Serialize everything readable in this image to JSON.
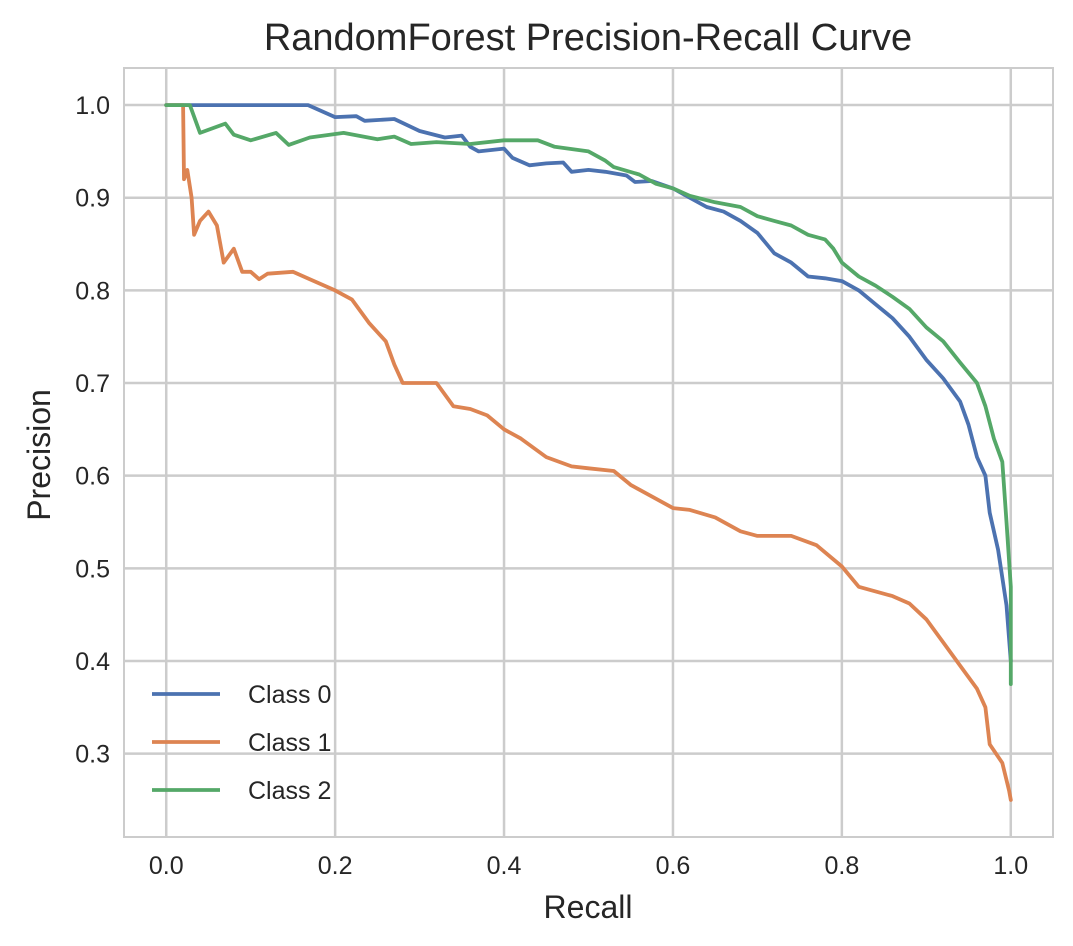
{
  "chart_data": {
    "type": "line",
    "title": "RandomForest Precision-Recall Curve",
    "xlabel": "Recall",
    "ylabel": "Precision",
    "xlim": [
      -0.05,
      1.05
    ],
    "ylim": [
      0.21,
      1.04
    ],
    "xticks": [
      "0.0",
      "0.2",
      "0.4",
      "0.6",
      "0.8",
      "1.0"
    ],
    "yticks": [
      "0.3",
      "0.4",
      "0.5",
      "0.6",
      "0.7",
      "0.8",
      "0.9",
      "1.0"
    ],
    "grid": true,
    "legend_position": "lower-left",
    "series": [
      {
        "name": "Class 0",
        "color": "#4c72b0",
        "points": [
          [
            0.0,
            1.0
          ],
          [
            0.05,
            1.0
          ],
          [
            0.1,
            1.0
          ],
          [
            0.168,
            1.0
          ],
          [
            0.2,
            0.987
          ],
          [
            0.225,
            0.988
          ],
          [
            0.235,
            0.983
          ],
          [
            0.27,
            0.985
          ],
          [
            0.3,
            0.972
          ],
          [
            0.33,
            0.965
          ],
          [
            0.35,
            0.967
          ],
          [
            0.36,
            0.955
          ],
          [
            0.37,
            0.95
          ],
          [
            0.4,
            0.953
          ],
          [
            0.41,
            0.943
          ],
          [
            0.43,
            0.935
          ],
          [
            0.45,
            0.937
          ],
          [
            0.47,
            0.938
          ],
          [
            0.48,
            0.928
          ],
          [
            0.5,
            0.93
          ],
          [
            0.52,
            0.928
          ],
          [
            0.545,
            0.924
          ],
          [
            0.555,
            0.917
          ],
          [
            0.575,
            0.918
          ],
          [
            0.6,
            0.91
          ],
          [
            0.62,
            0.9
          ],
          [
            0.64,
            0.89
          ],
          [
            0.66,
            0.885
          ],
          [
            0.68,
            0.875
          ],
          [
            0.7,
            0.862
          ],
          [
            0.72,
            0.84
          ],
          [
            0.74,
            0.83
          ],
          [
            0.76,
            0.815
          ],
          [
            0.78,
            0.813
          ],
          [
            0.8,
            0.81
          ],
          [
            0.82,
            0.8
          ],
          [
            0.84,
            0.785
          ],
          [
            0.86,
            0.77
          ],
          [
            0.88,
            0.75
          ],
          [
            0.9,
            0.725
          ],
          [
            0.92,
            0.705
          ],
          [
            0.94,
            0.68
          ],
          [
            0.95,
            0.655
          ],
          [
            0.96,
            0.62
          ],
          [
            0.97,
            0.6
          ],
          [
            0.975,
            0.56
          ],
          [
            0.985,
            0.52
          ],
          [
            0.995,
            0.46
          ],
          [
            1.0,
            0.4
          ]
        ]
      },
      {
        "name": "Class 1",
        "color": "#dd8452",
        "points": [
          [
            0.0,
            1.0
          ],
          [
            0.02,
            1.0
          ],
          [
            0.021,
            0.92
          ],
          [
            0.025,
            0.93
          ],
          [
            0.03,
            0.9
          ],
          [
            0.033,
            0.86
          ],
          [
            0.04,
            0.875
          ],
          [
            0.05,
            0.885
          ],
          [
            0.06,
            0.87
          ],
          [
            0.068,
            0.83
          ],
          [
            0.08,
            0.845
          ],
          [
            0.09,
            0.82
          ],
          [
            0.1,
            0.82
          ],
          [
            0.11,
            0.812
          ],
          [
            0.12,
            0.818
          ],
          [
            0.15,
            0.82
          ],
          [
            0.17,
            0.812
          ],
          [
            0.2,
            0.8
          ],
          [
            0.22,
            0.79
          ],
          [
            0.24,
            0.765
          ],
          [
            0.26,
            0.745
          ],
          [
            0.27,
            0.72
          ],
          [
            0.28,
            0.7
          ],
          [
            0.3,
            0.7
          ],
          [
            0.32,
            0.7
          ],
          [
            0.34,
            0.675
          ],
          [
            0.36,
            0.672
          ],
          [
            0.38,
            0.665
          ],
          [
            0.4,
            0.65
          ],
          [
            0.42,
            0.64
          ],
          [
            0.45,
            0.62
          ],
          [
            0.48,
            0.61
          ],
          [
            0.5,
            0.608
          ],
          [
            0.53,
            0.605
          ],
          [
            0.55,
            0.59
          ],
          [
            0.56,
            0.585
          ],
          [
            0.58,
            0.575
          ],
          [
            0.6,
            0.565
          ],
          [
            0.62,
            0.563
          ],
          [
            0.65,
            0.555
          ],
          [
            0.68,
            0.54
          ],
          [
            0.7,
            0.535
          ],
          [
            0.74,
            0.535
          ],
          [
            0.77,
            0.525
          ],
          [
            0.8,
            0.502
          ],
          [
            0.82,
            0.48
          ],
          [
            0.86,
            0.47
          ],
          [
            0.88,
            0.462
          ],
          [
            0.9,
            0.445
          ],
          [
            0.92,
            0.42
          ],
          [
            0.94,
            0.395
          ],
          [
            0.96,
            0.37
          ],
          [
            0.97,
            0.35
          ],
          [
            0.975,
            0.31
          ],
          [
            0.99,
            0.29
          ],
          [
            0.998,
            0.26
          ],
          [
            1.0,
            0.25
          ]
        ]
      },
      {
        "name": "Class 2",
        "color": "#55a868",
        "points": [
          [
            0.0,
            1.0
          ],
          [
            0.02,
            1.0
          ],
          [
            0.028,
            1.0
          ],
          [
            0.04,
            0.97
          ],
          [
            0.07,
            0.98
          ],
          [
            0.08,
            0.968
          ],
          [
            0.1,
            0.962
          ],
          [
            0.13,
            0.97
          ],
          [
            0.145,
            0.957
          ],
          [
            0.17,
            0.965
          ],
          [
            0.21,
            0.97
          ],
          [
            0.25,
            0.963
          ],
          [
            0.27,
            0.966
          ],
          [
            0.29,
            0.958
          ],
          [
            0.32,
            0.96
          ],
          [
            0.36,
            0.958
          ],
          [
            0.4,
            0.962
          ],
          [
            0.44,
            0.962
          ],
          [
            0.46,
            0.955
          ],
          [
            0.5,
            0.95
          ],
          [
            0.52,
            0.94
          ],
          [
            0.53,
            0.933
          ],
          [
            0.56,
            0.925
          ],
          [
            0.58,
            0.915
          ],
          [
            0.6,
            0.91
          ],
          [
            0.62,
            0.902
          ],
          [
            0.65,
            0.895
          ],
          [
            0.68,
            0.89
          ],
          [
            0.7,
            0.88
          ],
          [
            0.72,
            0.875
          ],
          [
            0.74,
            0.87
          ],
          [
            0.76,
            0.86
          ],
          [
            0.78,
            0.855
          ],
          [
            0.79,
            0.845
          ],
          [
            0.8,
            0.83
          ],
          [
            0.82,
            0.815
          ],
          [
            0.84,
            0.805
          ],
          [
            0.86,
            0.793
          ],
          [
            0.88,
            0.78
          ],
          [
            0.9,
            0.76
          ],
          [
            0.92,
            0.745
          ],
          [
            0.94,
            0.722
          ],
          [
            0.96,
            0.7
          ],
          [
            0.97,
            0.675
          ],
          [
            0.98,
            0.64
          ],
          [
            0.99,
            0.615
          ],
          [
            0.995,
            0.55
          ],
          [
            1.0,
            0.48
          ],
          [
            1.0,
            0.375
          ]
        ]
      }
    ]
  }
}
